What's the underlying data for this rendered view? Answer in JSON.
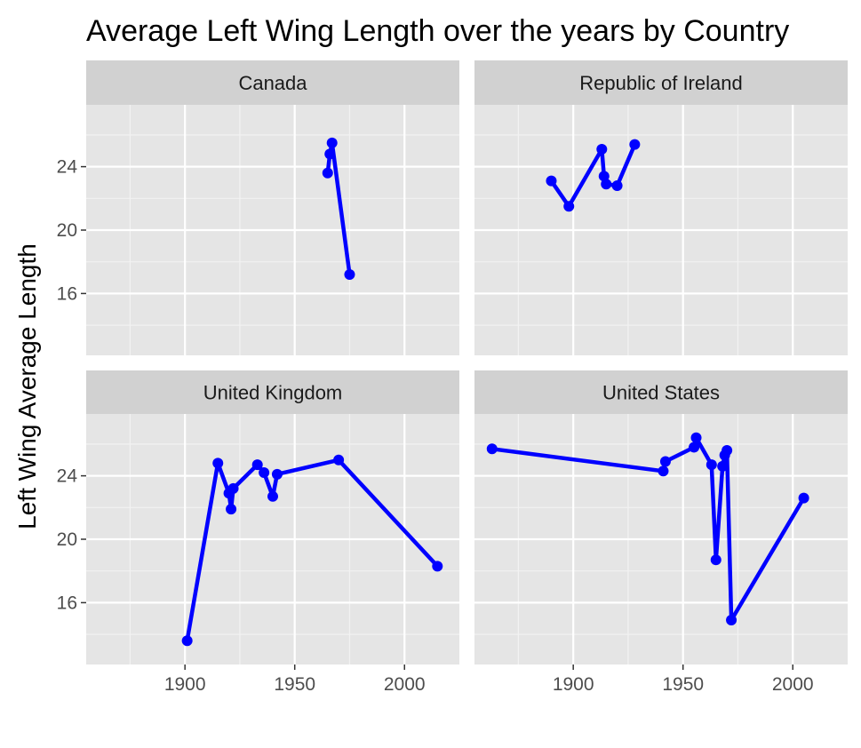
{
  "chart_data": {
    "type": "line",
    "title": "Average Left Wing Length over the years by Country",
    "xlabel": "",
    "ylabel": "Left Wing Average Length",
    "xlim": [
      1855,
      2025
    ],
    "ylim": [
      12.1,
      27.9
    ],
    "x_ticks": [
      1900,
      1950,
      2000
    ],
    "y_ticks": [
      16,
      20,
      24
    ],
    "grid": true,
    "legend": "none",
    "line_color": "#0000ff",
    "panel_background": "#e5e5e5",
    "strip_background": "#d1d1d1",
    "facets": [
      {
        "name": "Canada",
        "points": [
          {
            "x": 1965,
            "y": 23.6
          },
          {
            "x": 1966,
            "y": 24.8
          },
          {
            "x": 1967,
            "y": 25.5
          },
          {
            "x": 1975,
            "y": 17.2
          }
        ]
      },
      {
        "name": "Republic of Ireland",
        "points": [
          {
            "x": 1890,
            "y": 23.1
          },
          {
            "x": 1898,
            "y": 21.5
          },
          {
            "x": 1913,
            "y": 25.1
          },
          {
            "x": 1914,
            "y": 23.4
          },
          {
            "x": 1915,
            "y": 22.9
          },
          {
            "x": 1920,
            "y": 22.8
          },
          {
            "x": 1928,
            "y": 25.4
          }
        ]
      },
      {
        "name": "United Kingdom",
        "points": [
          {
            "x": 1901,
            "y": 13.6
          },
          {
            "x": 1915,
            "y": 24.8
          },
          {
            "x": 1920,
            "y": 22.9
          },
          {
            "x": 1921,
            "y": 21.9
          },
          {
            "x": 1922,
            "y": 23.2
          },
          {
            "x": 1933,
            "y": 24.7
          },
          {
            "x": 1936,
            "y": 24.2
          },
          {
            "x": 1940,
            "y": 22.7
          },
          {
            "x": 1942,
            "y": 24.1
          },
          {
            "x": 1970,
            "y": 25.0
          },
          {
            "x": 2015,
            "y": 18.3
          }
        ]
      },
      {
        "name": "United States",
        "points": [
          {
            "x": 1863,
            "y": 25.7
          },
          {
            "x": 1941,
            "y": 24.3
          },
          {
            "x": 1942,
            "y": 24.9
          },
          {
            "x": 1955,
            "y": 25.8
          },
          {
            "x": 1956,
            "y": 26.4
          },
          {
            "x": 1963,
            "y": 24.7
          },
          {
            "x": 1965,
            "y": 18.7
          },
          {
            "x": 1968,
            "y": 24.6
          },
          {
            "x": 1969,
            "y": 25.3
          },
          {
            "x": 1970,
            "y": 25.6
          },
          {
            "x": 1972,
            "y": 14.9
          },
          {
            "x": 2005,
            "y": 22.6
          }
        ]
      }
    ]
  }
}
